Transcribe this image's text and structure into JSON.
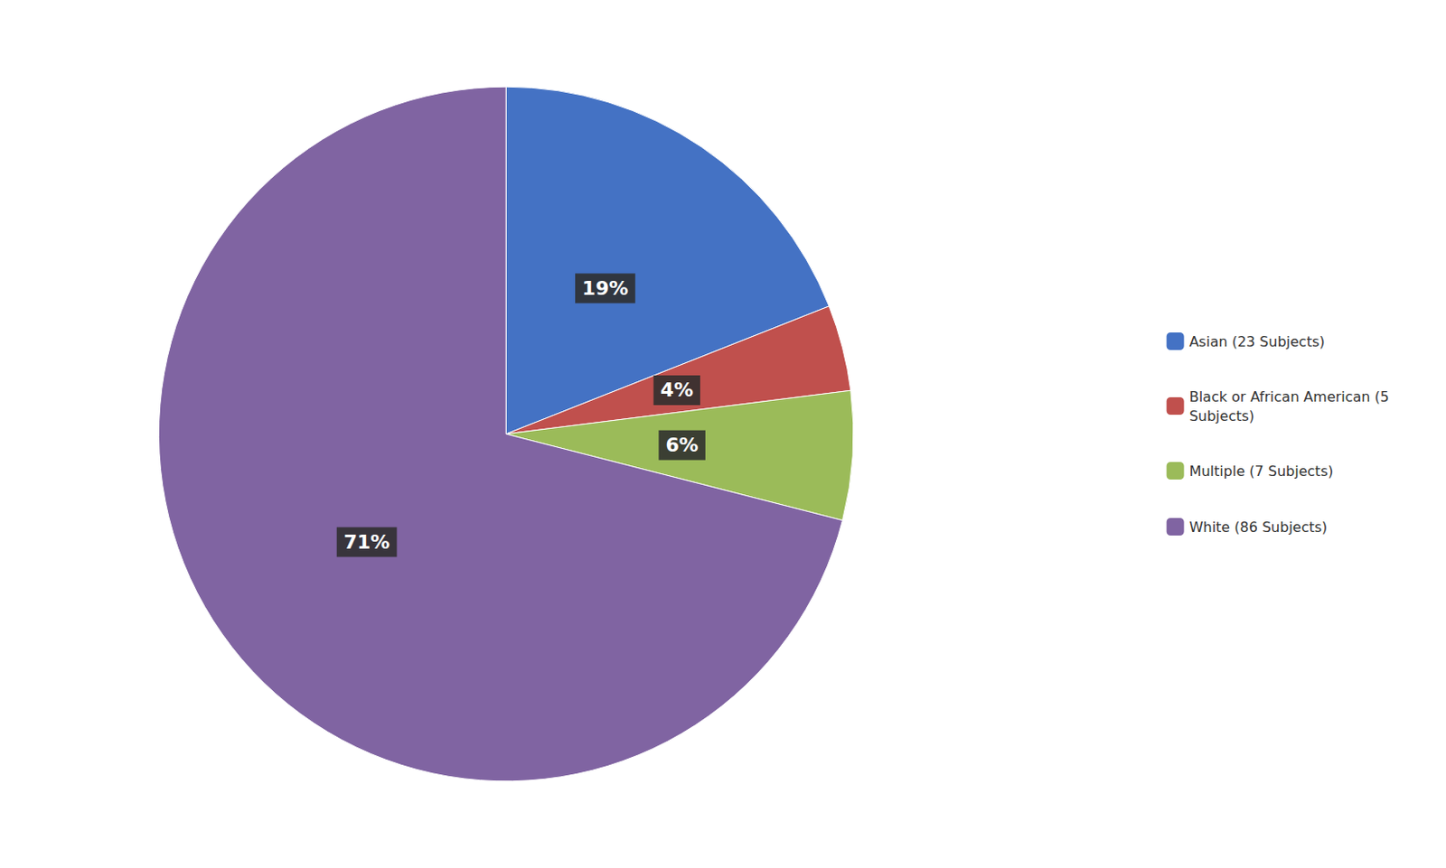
{
  "chart_data": {
    "type": "pie",
    "categories": [
      "Asian (23 Subjects)",
      "Black or African American (5\nSubjects)",
      "Multiple (7 Subjects)",
      "White (86 Subjects)"
    ],
    "values": [
      19,
      4,
      6,
      71
    ],
    "value_labels": [
      "19%",
      "4%",
      "6%",
      "71%"
    ],
    "data_labels": true,
    "colors": [
      "#4472C4",
      "#C0504D",
      "#9BBB59",
      "#8064A2"
    ],
    "legend": "right"
  }
}
